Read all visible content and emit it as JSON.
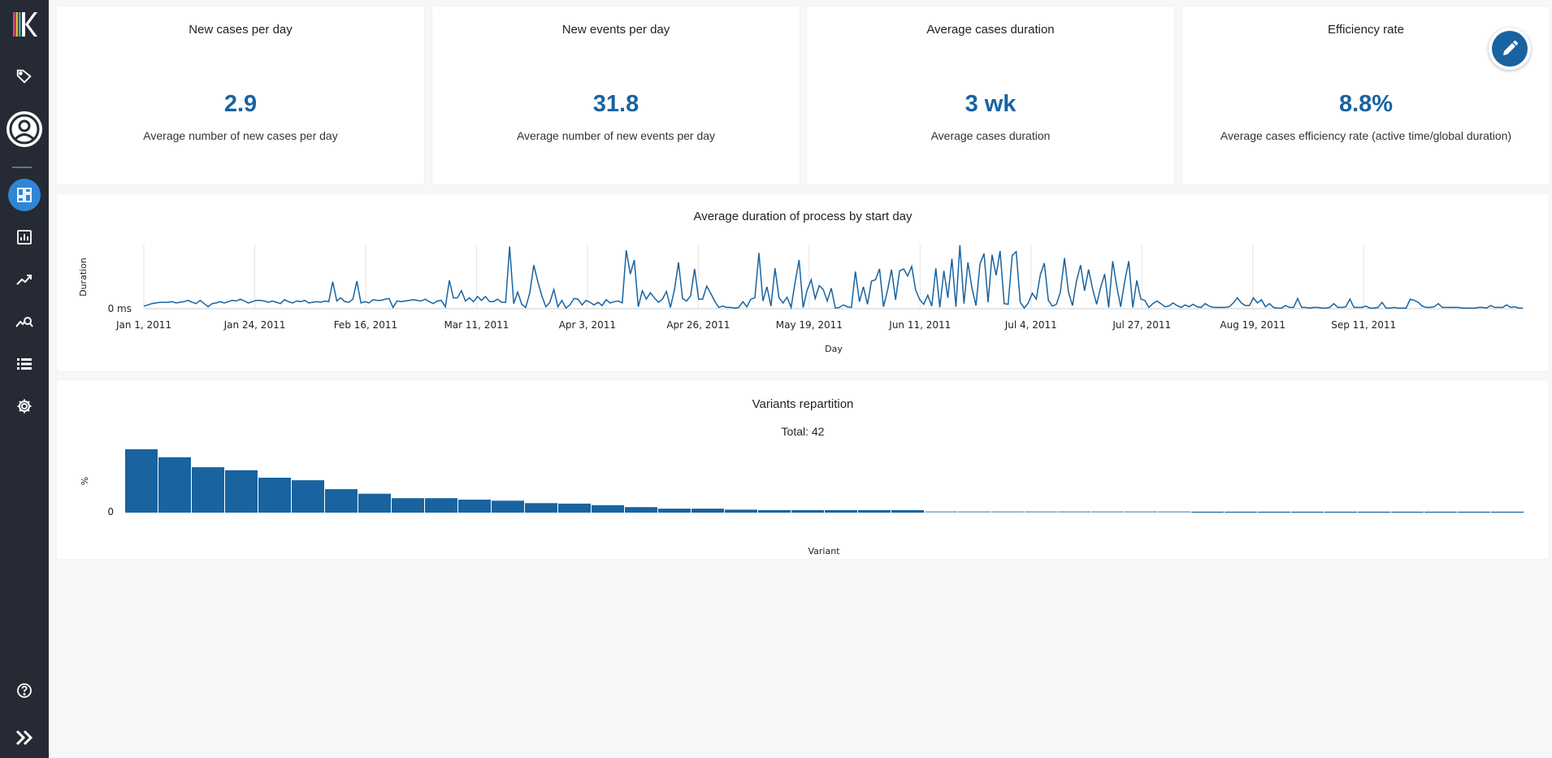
{
  "app": {
    "brand_color": "#1863a0",
    "sidebar_bg": "#252a34",
    "active_nav_color": "#2f86d6"
  },
  "sidebar": {
    "items": [
      {
        "icon": "logo-k-icon"
      },
      {
        "icon": "tag-icon"
      },
      {
        "icon": "user-circle-icon"
      },
      {
        "icon": "dashboard-icon",
        "active": true
      },
      {
        "icon": "report-chart-icon"
      },
      {
        "icon": "trend-icon"
      },
      {
        "icon": "analysis-search-icon"
      },
      {
        "icon": "list-icon"
      },
      {
        "icon": "gear-icon"
      },
      {
        "icon": "help-icon"
      },
      {
        "icon": "double-chevron-right-icon"
      }
    ]
  },
  "kpis": [
    {
      "title": "New cases per day",
      "value": "2.9",
      "description": "Average number of new cases per day"
    },
    {
      "title": "New events per day",
      "value": "31.8",
      "description": "Average number of new events per day"
    },
    {
      "title": "Average cases duration",
      "value": "3 wk",
      "description": "Average cases duration"
    },
    {
      "title": "Efficiency rate",
      "value": "8.8%",
      "description": "Average cases efficiency rate (active time/global duration)"
    }
  ],
  "edit_button": {
    "icon": "pencil-icon"
  },
  "duration_chart": {
    "title": "Average duration of process by start day",
    "chart_data": {
      "type": "line",
      "title": "Average duration of process by start day",
      "xlabel": "Day",
      "ylabel": "Duration",
      "y_tick_labels": [
        "0 ms"
      ],
      "x_tick_labels": [
        "Jan 1, 2011",
        "Jan 24, 2011",
        "Feb 16, 2011",
        "Mar 11, 2011",
        "Apr 3, 2011",
        "Apr 26, 2011",
        "May 19, 2011",
        "Jun 11, 2011",
        "Jul 4, 2011",
        "Jul 27, 2011",
        "Aug 19, 2011",
        "Sep 11, 2011"
      ],
      "x_range_days": [
        0,
        286
      ],
      "grid": "vertical",
      "series": [
        {
          "color": "#1863a0",
          "values": [
            0.04,
            0.06,
            0.08,
            0.09,
            0.1,
            0.1,
            0.1,
            0.11,
            0.09,
            0.1,
            0.11,
            0.13,
            0.1,
            0.08,
            0.13,
            0.08,
            0.03,
            0.08,
            0.09,
            0.11,
            0.09,
            0.11,
            0.13,
            0.12,
            0.15,
            0.12,
            0.09,
            0.11,
            0.13,
            0.13,
            0.12,
            0.1,
            0.12,
            0.1,
            0.08,
            0.14,
            0.11,
            0.09,
            0.12,
            0.11,
            0.13,
            0.09,
            0.1,
            0.11,
            0.1,
            0.12,
            0.11,
            0.42,
            0.12,
            0.17,
            0.11,
            0.1,
            0.15,
            0.43,
            0.09,
            0.11,
            0.09,
            0.14,
            0.13,
            0.13,
            0.15,
            0.16,
            0.02,
            0.12,
            0.11,
            0.12,
            0.13,
            0.14,
            0.13,
            0.12,
            0.15,
            0.11,
            0.08,
            0.12,
            0.13,
            0.03,
            0.44,
            0.17,
            0.17,
            0.28,
            0.12,
            0.17,
            0.11,
            0.19,
            0.13,
            0.19,
            0.11,
            0.11,
            0.15,
            0.1,
            0.1,
            0.97,
            0.08,
            0.26,
            0.07,
            0.02,
            0.25,
            0.68,
            0.42,
            0.2,
            0.03,
            0.1,
            0.3,
            0.03,
            0.13,
            0.01,
            0.06,
            0.16,
            0.15,
            0.06,
            0.13,
            0.1,
            0.06,
            0.1,
            0.05,
            0.14,
            0.09,
            0.11,
            0.12,
            0.09,
            0.91,
            0.54,
            0.76,
            0.03,
            0.28,
            0.15,
            0.25,
            0.17,
            0.1,
            0.15,
            0.27,
            0.02,
            0.3,
            0.72,
            0.16,
            0.12,
            0.2,
            0.62,
            0.15,
            0.15,
            0.35,
            0.24,
            0.12,
            0.02,
            0.04,
            0.02,
            0.02,
            0.01,
            0.02,
            0.11,
            0.03,
            0.15,
            0.17,
            0.87,
            0.12,
            0.34,
            0.04,
            0.63,
            0.17,
            0.09,
            0.18,
            0.02,
            0.41,
            0.76,
            0.02,
            0.29,
            0.45,
            0.16,
            0.36,
            0.3,
            0.12,
            0.32,
            0.01,
            0.02,
            0.06,
            0.03,
            0.02,
            0.58,
            0.11,
            0.34,
            0.07,
            0.43,
            0.45,
            0.62,
            0.03,
            0.29,
            0.61,
            0.14,
            0.59,
            0.62,
            0.51,
            0.66,
            0.29,
            0.14,
            0.07,
            0.21,
            0.04,
            0.63,
            0.02,
            0.59,
            0.17,
            0.78,
            0.03,
            0.99,
            0.08,
            0.72,
            0.32,
            0.05,
            0.7,
            0.86,
            0.1,
            0.84,
            0.52,
            0.9,
            0.08,
            0.07,
            0.83,
            0.89,
            0.1,
            0.01,
            0.09,
            0.24,
            0.15,
            0.53,
            0.71,
            0.13,
            0.04,
            0.07,
            0.26,
            0.79,
            0.26,
            0.05,
            0.43,
            0.68,
            0.28,
            0.61,
            0.31,
            0.07,
            0.33,
            0.54,
            0.02,
            0.74,
            0.35,
            0.03,
            0.43,
            0.74,
            0.02,
            0.44,
            0.15,
            0.13,
            0.02,
            0.08,
            0.12,
            0.08,
            0.03,
            0.04,
            0.09,
            0.05,
            0.02,
            0.06,
            0.03,
            0.07,
            0.03,
            0.02,
            0.08,
            0.04,
            0.02,
            0.02,
            0.02,
            0.02,
            0.03,
            0.09,
            0.17,
            0.09,
            0.05,
            0.05,
            0.17,
            0.09,
            0.14,
            0.03,
            0.08,
            0.02,
            0.01,
            0.01,
            0.05,
            0.02,
            0.02,
            0.16,
            0.02,
            0.02,
            0.01,
            0.02,
            0.02,
            0.01,
            0.01,
            0.02,
            0.08,
            0.02,
            0.02,
            0.03,
            0.15,
            0.02,
            0.02,
            0.02,
            0.04,
            0.01,
            0.01,
            0.02,
            0.1,
            0.01,
            0.01,
            0.02,
            0.01,
            0.01,
            0.01,
            0.15,
            0.13,
            0.1,
            0.04,
            0.02,
            0.02,
            0.03,
            0.08,
            0.02,
            0.02,
            0.02,
            0.02,
            0.02,
            0.01,
            0.01,
            0.01,
            0.01,
            0.02,
            0.02,
            0.01,
            0.05,
            0.02,
            0.02,
            0.02,
            0.06,
            0.02,
            0.03,
            0.01,
            0.01
          ]
        }
      ]
    }
  },
  "variants_chart": {
    "title": "Variants repartition",
    "subtitle": "Total: 42",
    "chart_data": {
      "type": "bar",
      "title": "Variants repartition",
      "subtitle": "Total: 42",
      "xlabel": "Variant",
      "ylabel": "%",
      "y_tick_labels": [
        "0"
      ],
      "n_categories": 42,
      "colors": {
        "main": "#1863a0",
        "faded": "#8fb3d4"
      },
      "values": [
        12.7,
        11.1,
        9.1,
        8.5,
        7.0,
        6.5,
        4.7,
        3.8,
        2.9,
        2.9,
        2.6,
        2.4,
        1.9,
        1.8,
        1.5,
        1.1,
        0.8,
        0.8,
        0.6,
        0.5,
        0.5,
        0.5,
        0.5,
        0.5,
        0.3,
        0.3,
        0.3,
        0.3,
        0.3,
        0.3,
        0.3,
        0.3,
        0.2,
        0.2,
        0.2,
        0.2,
        0.2,
        0.2,
        0.2,
        0.2,
        0.2,
        0.2
      ],
      "faded_range": [
        24,
        31
      ]
    }
  }
}
